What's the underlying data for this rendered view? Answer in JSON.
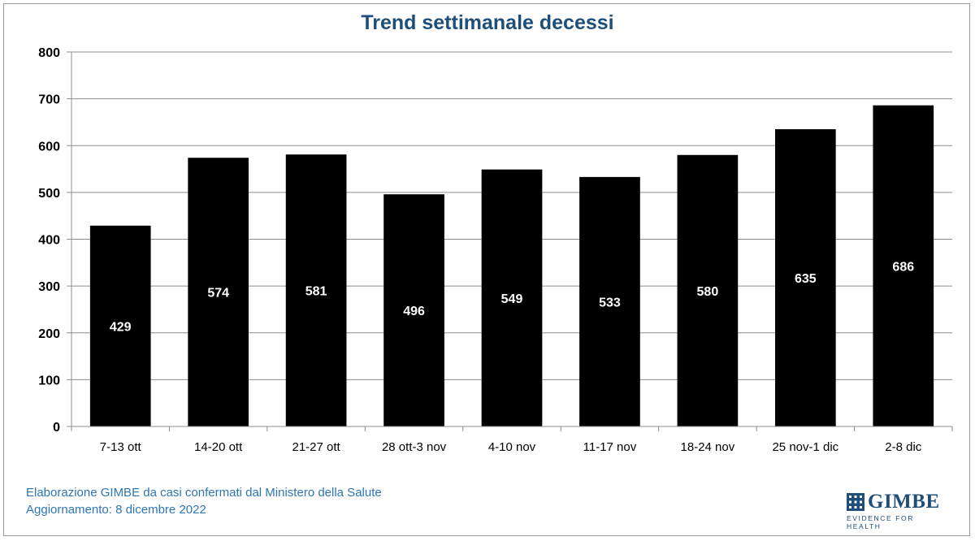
{
  "chart_data": {
    "type": "bar",
    "title": "Trend settimanale decessi",
    "categories": [
      "7-13 ott",
      "14-20 ott",
      "21-27 ott",
      "28 ott-3 nov",
      "4-10 nov",
      "11-17 nov",
      "18-24 nov",
      "25 nov-1 dic",
      "2-8 dic"
    ],
    "values": [
      429,
      574,
      581,
      496,
      549,
      533,
      580,
      635,
      686
    ],
    "ylim": [
      0,
      800
    ],
    "yticks": [
      0,
      100,
      200,
      300,
      400,
      500,
      600,
      700,
      800
    ],
    "grid": true,
    "bar_color": "#000000",
    "label_color": "#ffffff",
    "title_color": "#1f4e79"
  },
  "footer": {
    "line1": "Elaborazione GIMBE da casi confermati dal Ministero della Salute",
    "line2": "Aggiornamento: 8 dicembre 2022"
  },
  "logo": {
    "name": "GIMBE",
    "tagline": "EVIDENCE FOR HEALTH",
    "color": "#1f4e79"
  }
}
